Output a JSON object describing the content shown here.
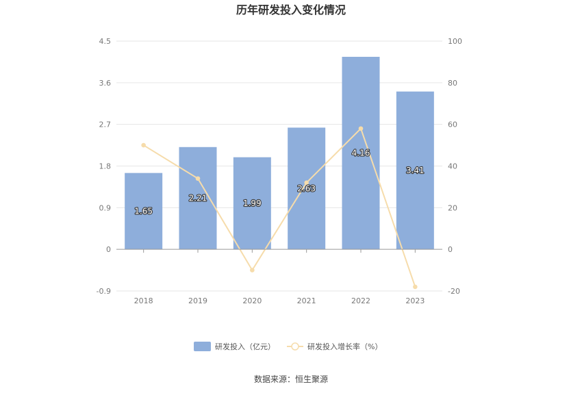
{
  "chart_data": {
    "type": "bar",
    "title": "历年研发投入变化情况",
    "categories": [
      "2018",
      "2019",
      "2020",
      "2021",
      "2022",
      "2023"
    ],
    "series": [
      {
        "name": "研发投入（亿元）",
        "type": "bar",
        "axis": "left",
        "values": [
          1.65,
          2.21,
          1.99,
          2.63,
          4.16,
          3.41
        ],
        "labels": [
          "1.65",
          "2.21",
          "1.99",
          "2.63",
          "4.16",
          "3.41"
        ],
        "color": "#8eaedb"
      },
      {
        "name": "研发投入增长率（%）",
        "type": "line",
        "axis": "right",
        "values": [
          50,
          34,
          -10,
          32,
          58,
          -18
        ],
        "color": "#f6dcab"
      }
    ],
    "y_left": {
      "min": -0.9,
      "max": 4.5,
      "ticks": [
        "-0.9",
        "0",
        "0.9",
        "1.8",
        "2.7",
        "3.6",
        "4.5"
      ]
    },
    "y_right": {
      "min": -20,
      "max": 100,
      "ticks": [
        "-20",
        "0",
        "20",
        "40",
        "60",
        "80",
        "100"
      ]
    },
    "grid": true,
    "legend_position": "bottom"
  },
  "footer": {
    "source": "数据来源：恒生聚源"
  }
}
